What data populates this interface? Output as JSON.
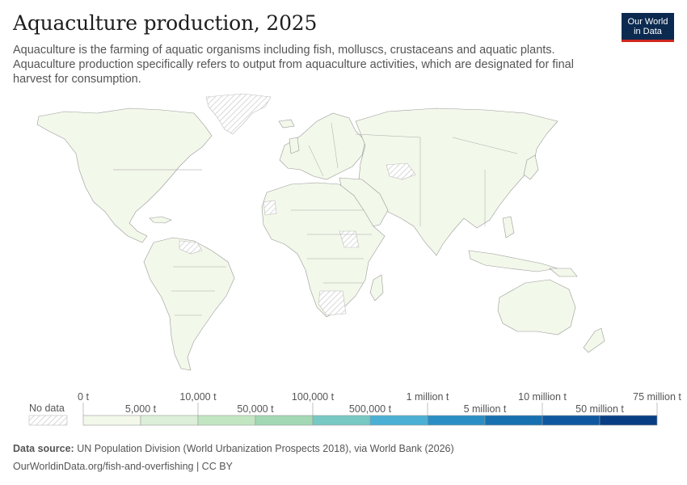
{
  "header": {
    "title": "Aquaculture production, 2025",
    "subtitle": "Aquaculture is the farming of aquatic organisms including fish, molluscs, crustaceans and aquatic plants. Aquaculture production specifically refers to output from aquaculture activities, which are designated for final harvest for consumption.",
    "logo_line1": "Our World",
    "logo_line2": "in Data"
  },
  "legend": {
    "no_data_label": "No data",
    "top_labels": [
      "0 t",
      "10,000 t",
      "100,000 t",
      "1 million t",
      "10 million t",
      "75 million t"
    ],
    "bottom_labels": [
      "5,000 t",
      "50,000 t",
      "500,000 t",
      "5 million t",
      "50 million t"
    ],
    "colors": [
      "#f2f8ea",
      "#dcefd9",
      "#c2e6c2",
      "#a3d8b4",
      "#78c8c4",
      "#4cb0d4",
      "#2a8ec4",
      "#1770b0",
      "#0e58a0",
      "#083f84"
    ]
  },
  "map": {
    "land_color": "#f2f8ea",
    "no_data_pattern": "hatched-gray"
  },
  "footer": {
    "source_label": "Data source:",
    "source_text": "UN Population Division (World Urbanization Prospects 2018), via World Bank (2026)",
    "credit": "OurWorldinData.org/fish-and-overfishing | CC BY"
  }
}
